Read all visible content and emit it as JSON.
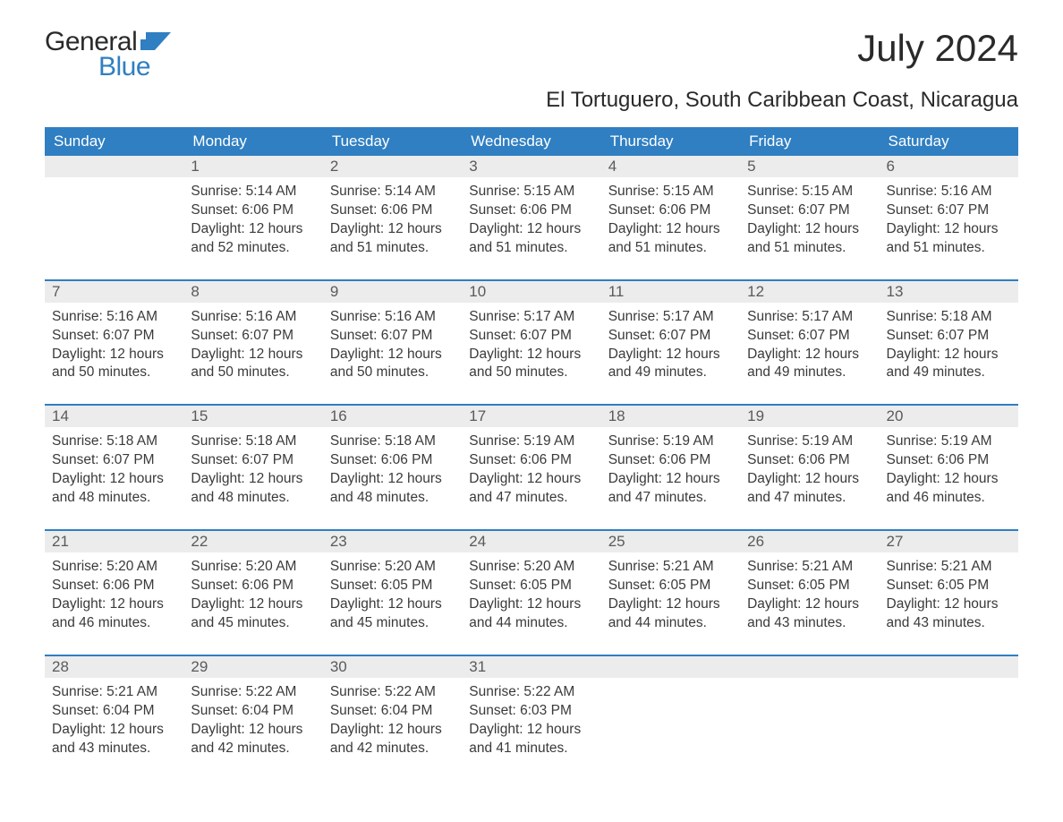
{
  "logo": {
    "word1": "General",
    "word2": "Blue"
  },
  "title": "July 2024",
  "subtitle": "El Tortuguero, South Caribbean Coast, Nicaragua",
  "colors": {
    "header_bg": "#2f7fc2",
    "header_fg": "#ffffff",
    "daynum_bg": "#ececec",
    "daynum_fg": "#5a5a5a",
    "text": "#3a3a3a",
    "logo_dark": "#2a2a2a",
    "logo_blue": "#2f7fc2",
    "page_bg": "#ffffff"
  },
  "typography": {
    "title_size_pt": 32,
    "subtitle_size_pt": 18,
    "dayheader_size_pt": 13,
    "body_size_pt": 12
  },
  "layout": {
    "columns": 7,
    "col_headers_bg": "#2f7fc2",
    "week_border_top": "#2f7fc2"
  },
  "day_headers": [
    "Sunday",
    "Monday",
    "Tuesday",
    "Wednesday",
    "Thursday",
    "Friday",
    "Saturday"
  ],
  "weeks": [
    [
      {
        "day": "",
        "sunrise": "",
        "sunset": "",
        "daylight1": "",
        "daylight2": ""
      },
      {
        "day": "1",
        "sunrise": "Sunrise: 5:14 AM",
        "sunset": "Sunset: 6:06 PM",
        "daylight1": "Daylight: 12 hours",
        "daylight2": "and 52 minutes."
      },
      {
        "day": "2",
        "sunrise": "Sunrise: 5:14 AM",
        "sunset": "Sunset: 6:06 PM",
        "daylight1": "Daylight: 12 hours",
        "daylight2": "and 51 minutes."
      },
      {
        "day": "3",
        "sunrise": "Sunrise: 5:15 AM",
        "sunset": "Sunset: 6:06 PM",
        "daylight1": "Daylight: 12 hours",
        "daylight2": "and 51 minutes."
      },
      {
        "day": "4",
        "sunrise": "Sunrise: 5:15 AM",
        "sunset": "Sunset: 6:06 PM",
        "daylight1": "Daylight: 12 hours",
        "daylight2": "and 51 minutes."
      },
      {
        "day": "5",
        "sunrise": "Sunrise: 5:15 AM",
        "sunset": "Sunset: 6:07 PM",
        "daylight1": "Daylight: 12 hours",
        "daylight2": "and 51 minutes."
      },
      {
        "day": "6",
        "sunrise": "Sunrise: 5:16 AM",
        "sunset": "Sunset: 6:07 PM",
        "daylight1": "Daylight: 12 hours",
        "daylight2": "and 51 minutes."
      }
    ],
    [
      {
        "day": "7",
        "sunrise": "Sunrise: 5:16 AM",
        "sunset": "Sunset: 6:07 PM",
        "daylight1": "Daylight: 12 hours",
        "daylight2": "and 50 minutes."
      },
      {
        "day": "8",
        "sunrise": "Sunrise: 5:16 AM",
        "sunset": "Sunset: 6:07 PM",
        "daylight1": "Daylight: 12 hours",
        "daylight2": "and 50 minutes."
      },
      {
        "day": "9",
        "sunrise": "Sunrise: 5:16 AM",
        "sunset": "Sunset: 6:07 PM",
        "daylight1": "Daylight: 12 hours",
        "daylight2": "and 50 minutes."
      },
      {
        "day": "10",
        "sunrise": "Sunrise: 5:17 AM",
        "sunset": "Sunset: 6:07 PM",
        "daylight1": "Daylight: 12 hours",
        "daylight2": "and 50 minutes."
      },
      {
        "day": "11",
        "sunrise": "Sunrise: 5:17 AM",
        "sunset": "Sunset: 6:07 PM",
        "daylight1": "Daylight: 12 hours",
        "daylight2": "and 49 minutes."
      },
      {
        "day": "12",
        "sunrise": "Sunrise: 5:17 AM",
        "sunset": "Sunset: 6:07 PM",
        "daylight1": "Daylight: 12 hours",
        "daylight2": "and 49 minutes."
      },
      {
        "day": "13",
        "sunrise": "Sunrise: 5:18 AM",
        "sunset": "Sunset: 6:07 PM",
        "daylight1": "Daylight: 12 hours",
        "daylight2": "and 49 minutes."
      }
    ],
    [
      {
        "day": "14",
        "sunrise": "Sunrise: 5:18 AM",
        "sunset": "Sunset: 6:07 PM",
        "daylight1": "Daylight: 12 hours",
        "daylight2": "and 48 minutes."
      },
      {
        "day": "15",
        "sunrise": "Sunrise: 5:18 AM",
        "sunset": "Sunset: 6:07 PM",
        "daylight1": "Daylight: 12 hours",
        "daylight2": "and 48 minutes."
      },
      {
        "day": "16",
        "sunrise": "Sunrise: 5:18 AM",
        "sunset": "Sunset: 6:06 PM",
        "daylight1": "Daylight: 12 hours",
        "daylight2": "and 48 minutes."
      },
      {
        "day": "17",
        "sunrise": "Sunrise: 5:19 AM",
        "sunset": "Sunset: 6:06 PM",
        "daylight1": "Daylight: 12 hours",
        "daylight2": "and 47 minutes."
      },
      {
        "day": "18",
        "sunrise": "Sunrise: 5:19 AM",
        "sunset": "Sunset: 6:06 PM",
        "daylight1": "Daylight: 12 hours",
        "daylight2": "and 47 minutes."
      },
      {
        "day": "19",
        "sunrise": "Sunrise: 5:19 AM",
        "sunset": "Sunset: 6:06 PM",
        "daylight1": "Daylight: 12 hours",
        "daylight2": "and 47 minutes."
      },
      {
        "day": "20",
        "sunrise": "Sunrise: 5:19 AM",
        "sunset": "Sunset: 6:06 PM",
        "daylight1": "Daylight: 12 hours",
        "daylight2": "and 46 minutes."
      }
    ],
    [
      {
        "day": "21",
        "sunrise": "Sunrise: 5:20 AM",
        "sunset": "Sunset: 6:06 PM",
        "daylight1": "Daylight: 12 hours",
        "daylight2": "and 46 minutes."
      },
      {
        "day": "22",
        "sunrise": "Sunrise: 5:20 AM",
        "sunset": "Sunset: 6:06 PM",
        "daylight1": "Daylight: 12 hours",
        "daylight2": "and 45 minutes."
      },
      {
        "day": "23",
        "sunrise": "Sunrise: 5:20 AM",
        "sunset": "Sunset: 6:05 PM",
        "daylight1": "Daylight: 12 hours",
        "daylight2": "and 45 minutes."
      },
      {
        "day": "24",
        "sunrise": "Sunrise: 5:20 AM",
        "sunset": "Sunset: 6:05 PM",
        "daylight1": "Daylight: 12 hours",
        "daylight2": "and 44 minutes."
      },
      {
        "day": "25",
        "sunrise": "Sunrise: 5:21 AM",
        "sunset": "Sunset: 6:05 PM",
        "daylight1": "Daylight: 12 hours",
        "daylight2": "and 44 minutes."
      },
      {
        "day": "26",
        "sunrise": "Sunrise: 5:21 AM",
        "sunset": "Sunset: 6:05 PM",
        "daylight1": "Daylight: 12 hours",
        "daylight2": "and 43 minutes."
      },
      {
        "day": "27",
        "sunrise": "Sunrise: 5:21 AM",
        "sunset": "Sunset: 6:05 PM",
        "daylight1": "Daylight: 12 hours",
        "daylight2": "and 43 minutes."
      }
    ],
    [
      {
        "day": "28",
        "sunrise": "Sunrise: 5:21 AM",
        "sunset": "Sunset: 6:04 PM",
        "daylight1": "Daylight: 12 hours",
        "daylight2": "and 43 minutes."
      },
      {
        "day": "29",
        "sunrise": "Sunrise: 5:22 AM",
        "sunset": "Sunset: 6:04 PM",
        "daylight1": "Daylight: 12 hours",
        "daylight2": "and 42 minutes."
      },
      {
        "day": "30",
        "sunrise": "Sunrise: 5:22 AM",
        "sunset": "Sunset: 6:04 PM",
        "daylight1": "Daylight: 12 hours",
        "daylight2": "and 42 minutes."
      },
      {
        "day": "31",
        "sunrise": "Sunrise: 5:22 AM",
        "sunset": "Sunset: 6:03 PM",
        "daylight1": "Daylight: 12 hours",
        "daylight2": "and 41 minutes."
      },
      {
        "day": "",
        "sunrise": "",
        "sunset": "",
        "daylight1": "",
        "daylight2": ""
      },
      {
        "day": "",
        "sunrise": "",
        "sunset": "",
        "daylight1": "",
        "daylight2": ""
      },
      {
        "day": "",
        "sunrise": "",
        "sunset": "",
        "daylight1": "",
        "daylight2": ""
      }
    ]
  ]
}
